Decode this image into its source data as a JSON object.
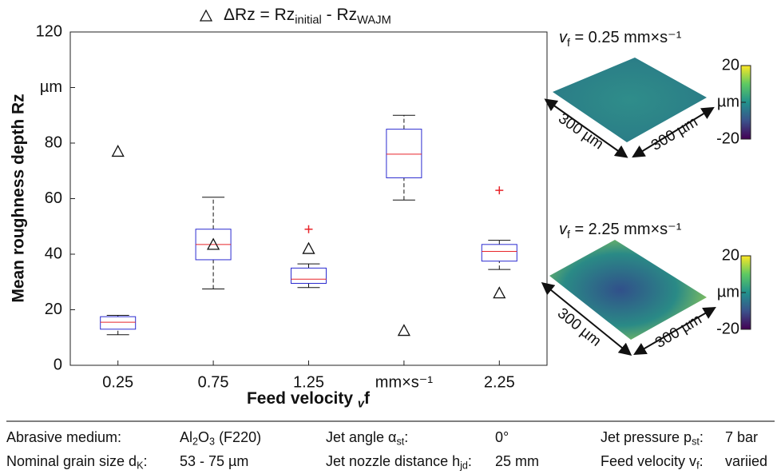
{
  "chart_data": {
    "type": "box",
    "y_label": "Mean roughness depth Rz",
    "x_label": [
      "Feed velocity ",
      "v",
      "f"
    ],
    "legend_label": [
      "ΔRz = Rz",
      "initial",
      " - Rz",
      "WAJM"
    ],
    "categories": [
      "0.25",
      "0.75",
      "1.25",
      "mm×s⁻¹",
      "2.25"
    ],
    "ylim": [
      0,
      120
    ],
    "yticks": [
      0,
      20,
      40,
      60,
      80,
      {
        "value": 100,
        "label": "µm"
      },
      120
    ],
    "box_color": "#2b2bd0",
    "median_color": "#e8252a",
    "flier_color": "#e8252a",
    "boxes": [
      {
        "whislo": 11,
        "q1": 13,
        "med": 15.5,
        "q3": 17.5,
        "whishi": 18,
        "fliers": []
      },
      {
        "whislo": 27.5,
        "q1": 38,
        "med": 43.5,
        "q3": 49,
        "whishi": 60.5,
        "fliers": []
      },
      {
        "whislo": 28,
        "q1": 29.5,
        "med": 31,
        "q3": 35,
        "whishi": 36.5,
        "fliers": [
          49
        ]
      },
      {
        "whislo": 59.5,
        "q1": 67.5,
        "med": 76,
        "q3": 85,
        "whishi": 90,
        "fliers": []
      },
      {
        "whislo": 34.5,
        "q1": 37.5,
        "med": 41,
        "q3": 43.5,
        "whishi": 45,
        "fliers": [
          63
        ]
      }
    ],
    "delta_rz": [
      77,
      43.5,
      42,
      12.5,
      26
    ]
  },
  "insets": [
    {
      "title": [
        "v",
        "f",
        " = 0.25 mm×s⁻¹"
      ],
      "clim": [
        -20,
        20
      ],
      "colorbar_ticks": [
        20,
        {
          "value": 0,
          "label": "µm"
        },
        -20
      ],
      "dim_labels": [
        "300 µm",
        "300 µm"
      ]
    },
    {
      "title": [
        "v",
        "f",
        " = 2.25 mm×s⁻¹"
      ],
      "clim": [
        -20,
        20
      ],
      "colorbar_ticks": [
        20,
        {
          "value": 0,
          "label": "µm"
        },
        -20
      ],
      "dim_labels": [
        "300 µm",
        "300 µm"
      ]
    }
  ],
  "footer": {
    "rows": [
      [
        [
          "Abrasive medium:"
        ],
        [
          "Al",
          "2",
          "O",
          "3",
          " (F220)"
        ],
        [
          "Jet angle α",
          "st",
          ":"
        ],
        [
          "0°"
        ],
        [
          "Jet pressure p",
          "st",
          ":"
        ],
        [
          "7 bar"
        ]
      ],
      [
        [
          "Nominal grain size d",
          "K",
          ":"
        ],
        [
          "53 - 75 µm"
        ],
        [
          "Jet nozzle distance h",
          "jd",
          ":"
        ],
        [
          "25 mm"
        ],
        [
          "Feed velocity v",
          "f",
          ":"
        ],
        [
          "variied"
        ]
      ]
    ]
  }
}
